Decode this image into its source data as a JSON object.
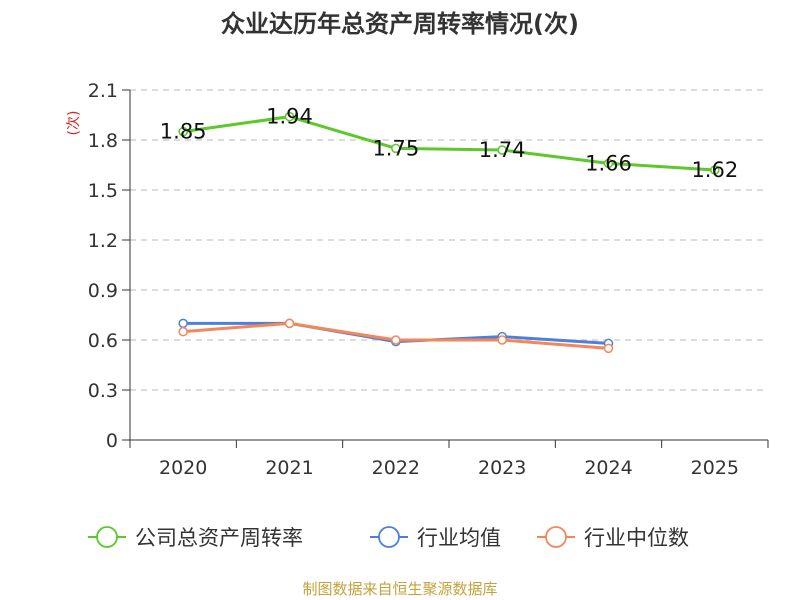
{
  "chart_data": {
    "type": "line",
    "title": "众业达历年总资产周转率情况(次)",
    "ylabel": "(次)",
    "xlabel": "",
    "categories": [
      "2020",
      "2021",
      "2022",
      "2023",
      "2024",
      "2025"
    ],
    "ylim": [
      0,
      2.1
    ],
    "yticks": [
      "0",
      "0.3",
      "0.6",
      "0.9",
      "1.2",
      "1.5",
      "1.8",
      "2.1"
    ],
    "grid": true,
    "legend_position": "bottom",
    "series": [
      {
        "name": "公司总资产周转率",
        "color": "#5cc82a",
        "values": [
          1.85,
          1.94,
          1.75,
          1.74,
          1.66,
          1.62
        ],
        "labels": [
          "1.85",
          "1.94",
          "1.75",
          "1.74",
          "1.66",
          "1.62"
        ]
      },
      {
        "name": "行业均值",
        "color": "#4f7fdc",
        "values": [
          0.7,
          0.7,
          0.59,
          0.62,
          0.58,
          null
        ]
      },
      {
        "name": "行业中位数",
        "color": "#f2875a",
        "values": [
          0.65,
          0.7,
          0.6,
          0.6,
          0.55,
          null
        ]
      }
    ]
  },
  "source": "制图数据来自恒生聚源数据库"
}
